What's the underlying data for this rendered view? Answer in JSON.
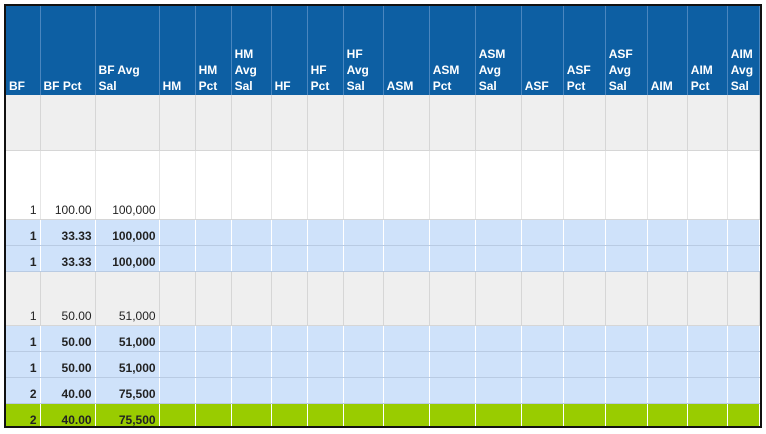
{
  "headers": [
    "BF",
    "BF Pct",
    "BF Avg Sal",
    "HM",
    "HM Pct",
    "HM Avg Sal",
    "HF",
    "HF Pct",
    "HF Avg Sal",
    "ASM",
    "ASM Pct",
    "ASM Avg Sal",
    "ASF",
    "ASF Pct",
    "ASF Avg Sal",
    "AIM",
    "AIM Pct",
    "AIM Avg Sal"
  ],
  "rows": [
    {
      "style": "gray",
      "height": 55,
      "cells": [
        "",
        "",
        ""
      ]
    },
    {
      "style": "white",
      "height": 69,
      "cells": [
        "1",
        "100.00",
        "100,000"
      ]
    },
    {
      "style": "blue",
      "height": 26,
      "cells": [
        "1",
        "33.33",
        "100,000"
      ]
    },
    {
      "style": "blue",
      "height": 26,
      "cells": [
        "1",
        "33.33",
        "100,000"
      ]
    },
    {
      "style": "gray",
      "height": 54,
      "cells": [
        "1",
        "50.00",
        "51,000"
      ]
    },
    {
      "style": "blue",
      "height": 26,
      "cells": [
        "1",
        "50.00",
        "51,000"
      ]
    },
    {
      "style": "blue",
      "height": 26,
      "cells": [
        "1",
        "50.00",
        "51,000"
      ]
    },
    {
      "style": "blue",
      "height": 26,
      "cells": [
        "2",
        "40.00",
        "75,500"
      ]
    },
    {
      "style": "green",
      "height": 26,
      "cells": [
        "2",
        "40.00",
        "75,500"
      ]
    }
  ]
}
